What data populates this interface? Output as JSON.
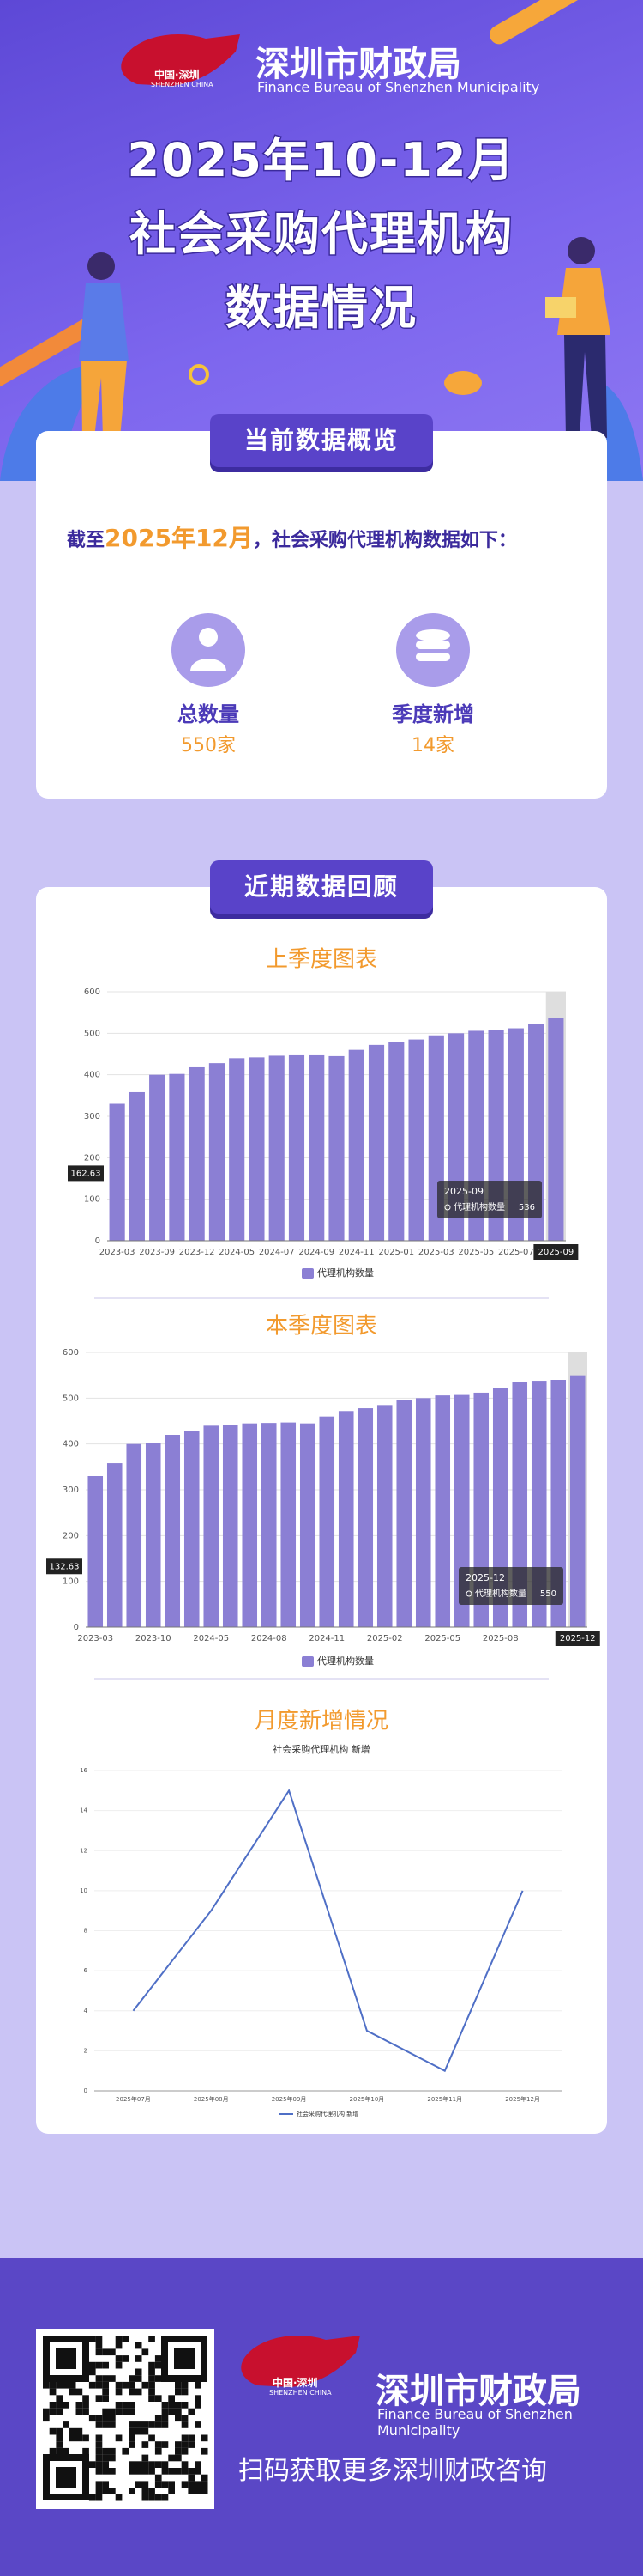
{
  "header": {
    "logo_cn": "中国·深圳",
    "logo_en": "SHENZHEN CHINA",
    "org_cn": "深圳市财政局",
    "org_en": "Finance Bureau of Shenzhen Municipality"
  },
  "title": {
    "line1": "2025年10-12月",
    "line2": "社会采购代理机构",
    "line3": "数据情况"
  },
  "overview": {
    "section_title": "当前数据概览",
    "intro_prefix": "截至",
    "intro_date": "2025年12月",
    "intro_suffix": "，社会采购代理机构数据如下：",
    "stats": [
      {
        "label": "总数量",
        "value": "550家"
      },
      {
        "label": "季度新增",
        "value": "14家"
      }
    ]
  },
  "review": {
    "section_title": "近期数据回顾"
  },
  "chart_data": [
    {
      "type": "bar",
      "title": "上季度图表",
      "categories": [
        "2023-03",
        null,
        "2023-09",
        null,
        "2023-12",
        null,
        "2024-05",
        null,
        "2024-07",
        null,
        "2024-09",
        null,
        "2024-11",
        null,
        "2025-01",
        null,
        "2025-03",
        null,
        "2025-05",
        null,
        "2025-07",
        null,
        "2025-09"
      ],
      "series": [
        {
          "name": "代理机构数量",
          "color": "#8b7fd4",
          "values": [
            330,
            358,
            400,
            402,
            418,
            428,
            440,
            442,
            446,
            447,
            447,
            445,
            460,
            472,
            478,
            485,
            495,
            500,
            506,
            507,
            512,
            522,
            536
          ]
        }
      ],
      "ylim": [
        0,
        600
      ],
      "yticks": [
        0,
        100,
        200,
        300,
        400,
        500,
        600
      ],
      "y_pointer": 162.63
    },
    {
      "type": "bar",
      "title": "本季度图表",
      "categories": [
        "2023-03",
        null,
        null,
        "2023-10",
        null,
        null,
        "2024-05",
        null,
        null,
        "2024-08",
        null,
        null,
        "2024-11",
        null,
        null,
        "2025-02",
        null,
        null,
        "2025-05",
        null,
        null,
        "2025-08",
        null,
        null,
        null,
        "2025-12"
      ],
      "series": [
        {
          "name": "代理机构数量",
          "color": "#8b7fd4",
          "values": [
            330,
            358,
            400,
            402,
            420,
            428,
            440,
            442,
            445,
            446,
            447,
            445,
            460,
            472,
            478,
            485,
            495,
            500,
            506,
            507,
            512,
            522,
            536,
            538,
            540,
            550
          ]
        }
      ],
      "ylim": [
        0,
        600
      ],
      "yticks": [
        0,
        100,
        200,
        300,
        400,
        500,
        600
      ],
      "y_pointer": 132.63
    },
    {
      "type": "line",
      "title": "月度新增情况",
      "subtitle": "社会采购代理机构 新增",
      "categories": [
        "2025年07月",
        "2025年08月",
        "2025年09月",
        "2025年10月",
        "2025年11月",
        "2025年12月"
      ],
      "series": [
        {
          "name": "社会采购代理机构 新增",
          "color": "#4f6fc6",
          "values": [
            4,
            9,
            15,
            3,
            1,
            10
          ]
        }
      ],
      "ylim": [
        0,
        16
      ],
      "yticks": [
        0,
        2,
        4,
        6,
        8,
        10,
        12,
        14,
        16
      ]
    }
  ],
  "footer": {
    "logo_cn": "中国·深圳",
    "logo_en": "SHENZHEN CHINA",
    "org_cn": "深圳市财政局",
    "org_en": "Finance Bureau of Shenzhen Municipality",
    "caption": "扫码获取更多深圳财政咨询"
  }
}
